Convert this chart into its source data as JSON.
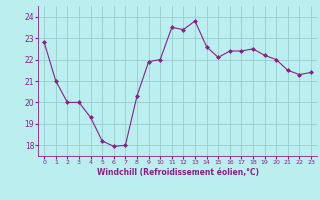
{
  "x": [
    0,
    1,
    2,
    3,
    4,
    5,
    6,
    7,
    8,
    9,
    10,
    11,
    12,
    13,
    14,
    15,
    16,
    17,
    18,
    19,
    20,
    21,
    22,
    23
  ],
  "y": [
    22.8,
    21.0,
    20.0,
    20.0,
    19.3,
    18.2,
    17.95,
    18.0,
    20.3,
    21.9,
    22.0,
    23.5,
    23.4,
    23.8,
    22.6,
    22.1,
    22.4,
    22.4,
    22.5,
    22.2,
    22.0,
    21.5,
    21.3,
    21.4
  ],
  "line_color": "#882288",
  "marker": "D",
  "marker_size": 2.0,
  "bg_color": "#bbeeee",
  "grid_color": "#99cccc",
  "xlabel": "Windchill (Refroidissement éolien,°C)",
  "xlabel_color": "#882288",
  "tick_color": "#882288",
  "ylim": [
    17.5,
    24.5
  ],
  "xlim": [
    -0.5,
    23.5
  ],
  "yticks": [
    18,
    19,
    20,
    21,
    22,
    23,
    24
  ],
  "xticks": [
    0,
    1,
    2,
    3,
    4,
    5,
    6,
    7,
    8,
    9,
    10,
    11,
    12,
    13,
    14,
    15,
    16,
    17,
    18,
    19,
    20,
    21,
    22,
    23
  ]
}
